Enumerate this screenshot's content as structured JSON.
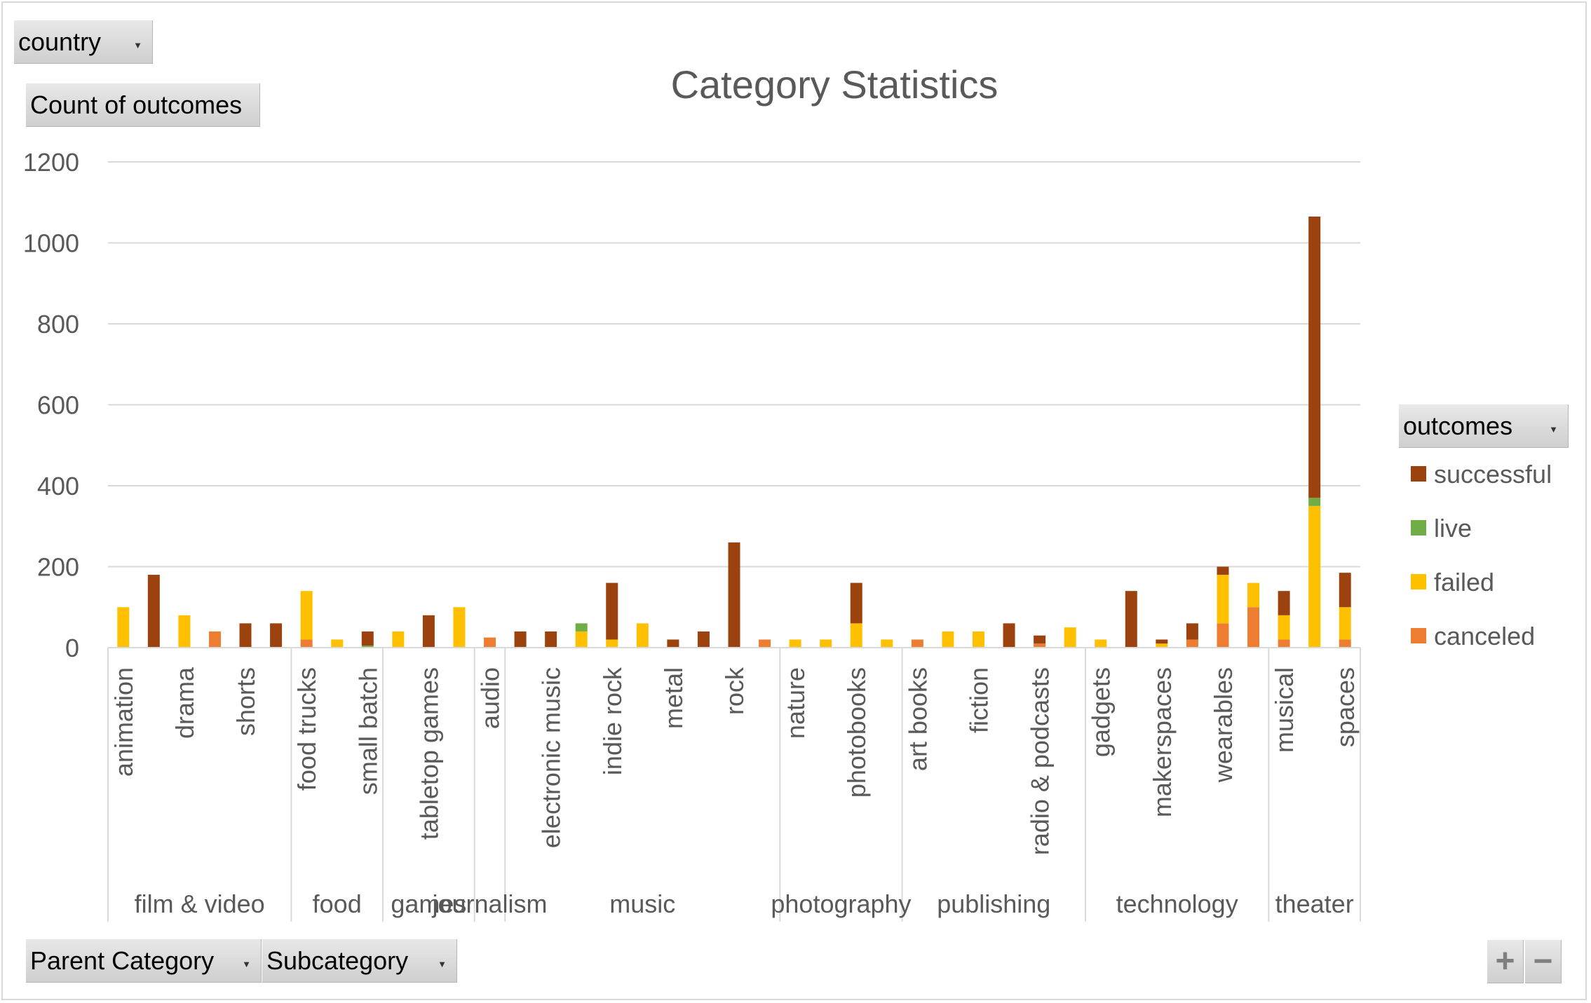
{
  "filters": {
    "country": "country",
    "values_field": "Count of outcomes",
    "legend_field": "outcomes",
    "row_fields": [
      "Parent Category",
      "Subcategory"
    ]
  },
  "colors": {
    "successful": "#9c420e",
    "live": "#70ad47",
    "failed": "#ffc000",
    "canceled": "#ed7d31",
    "grid": "#d9d9d9",
    "text": "#595959"
  },
  "chart_data": {
    "type": "bar",
    "stacked": true,
    "title": "Category Statistics",
    "ylim": [
      0,
      1200
    ],
    "yticks": [
      0,
      200,
      400,
      600,
      800,
      1000,
      1200
    ],
    "grid": true,
    "legend_position": "right",
    "legend_title": "outcomes",
    "legend_order": [
      "successful",
      "live",
      "failed",
      "canceled"
    ],
    "groups": [
      {
        "name": "film & video",
        "count": 6
      },
      {
        "name": "food",
        "count": 3
      },
      {
        "name": "games",
        "count": 3
      },
      {
        "name": "journalism",
        "count": 1
      },
      {
        "name": "music",
        "count": 9
      },
      {
        "name": "photography",
        "count": 4
      },
      {
        "name": "publishing",
        "count": 6
      },
      {
        "name": "technology",
        "count": 6
      },
      {
        "name": "theater",
        "count": 3
      }
    ],
    "categories": [
      "animation",
      "",
      "drama",
      "",
      "shorts",
      "",
      "food trucks",
      "",
      "small batch",
      "",
      "tabletop games",
      "",
      "audio",
      "",
      "electronic music",
      "",
      "indie rock",
      "",
      "metal",
      "",
      "rock",
      "",
      "nature",
      "",
      "photobooks",
      "",
      "art books",
      "",
      "fiction",
      "",
      "radio & podcasts",
      "",
      "gadgets",
      "",
      "makerspaces",
      "",
      "wearables",
      "",
      "musical",
      "",
      "spaces"
    ],
    "series": [
      {
        "name": "canceled",
        "values": [
          0,
          0,
          0,
          40,
          0,
          0,
          20,
          0,
          0,
          0,
          0,
          0,
          25,
          0,
          0,
          0,
          0,
          0,
          0,
          0,
          0,
          20,
          0,
          0,
          0,
          0,
          20,
          0,
          0,
          0,
          10,
          0,
          0,
          0,
          0,
          20,
          60,
          100,
          20,
          0,
          20
        ]
      },
      {
        "name": "failed",
        "values": [
          100,
          0,
          80,
          0,
          0,
          0,
          120,
          20,
          0,
          40,
          0,
          100,
          0,
          0,
          0,
          40,
          20,
          60,
          0,
          0,
          0,
          0,
          20,
          20,
          60,
          20,
          0,
          40,
          40,
          0,
          0,
          50,
          20,
          0,
          10,
          0,
          120,
          60,
          60,
          350,
          80
        ]
      },
      {
        "name": "live",
        "values": [
          0,
          0,
          0,
          0,
          0,
          0,
          0,
          0,
          5,
          0,
          0,
          0,
          0,
          0,
          0,
          20,
          0,
          0,
          0,
          0,
          0,
          0,
          0,
          0,
          0,
          0,
          0,
          0,
          0,
          0,
          0,
          0,
          0,
          0,
          0,
          0,
          0,
          0,
          0,
          20,
          0
        ]
      },
      {
        "name": "successful",
        "values": [
          0,
          180,
          0,
          0,
          60,
          60,
          0,
          0,
          35,
          0,
          80,
          0,
          0,
          40,
          40,
          0,
          140,
          0,
          20,
          40,
          260,
          0,
          0,
          0,
          100,
          0,
          0,
          0,
          0,
          60,
          20,
          0,
          0,
          140,
          10,
          40,
          20,
          0,
          60,
          695,
          85
        ]
      }
    ]
  },
  "zoom": {
    "plus": "+",
    "minus": "−"
  }
}
